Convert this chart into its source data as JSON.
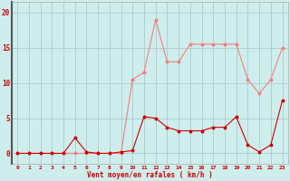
{
  "hours": [
    0,
    1,
    2,
    3,
    4,
    5,
    6,
    7,
    8,
    9,
    10,
    11,
    12,
    13,
    14,
    15,
    16,
    17,
    18,
    19,
    20,
    21,
    22,
    23
  ],
  "rafales": [
    0,
    0,
    0,
    0,
    0,
    0,
    0,
    0,
    0,
    0,
    10.5,
    11.5,
    19,
    13,
    13,
    15.5,
    15.5,
    15.5,
    15.5,
    15.5,
    10.5,
    8.5,
    10.5,
    15
  ],
  "moyen": [
    0,
    0,
    0,
    0,
    0,
    2.2,
    0.2,
    0,
    0,
    0.2,
    0.4,
    5.2,
    5.0,
    3.7,
    3.2,
    3.2,
    3.2,
    3.7,
    3.7,
    5.2,
    1.2,
    0.2,
    1.2,
    7.5
  ],
  "bg_color": "#ceeeed",
  "grid_color": "#b0c8c8",
  "line_color_rafales": "#f08080",
  "line_color_moyen": "#cc0000",
  "xlabel": "Vent moyen/en rafales ( km/h )",
  "yticks": [
    0,
    5,
    10,
    15,
    20
  ],
  "xlim": [
    -0.5,
    23.5
  ],
  "ylim": [
    -1.5,
    21.5
  ]
}
